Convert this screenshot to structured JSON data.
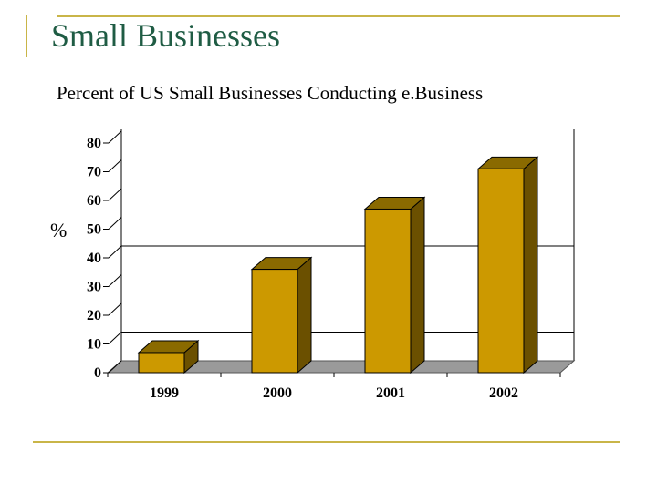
{
  "slide": {
    "title": "Small Businesses"
  },
  "colors": {
    "accent_line": "#c9b548",
    "title_text": "#1f5c44",
    "bar_front": "#cc9900",
    "bar_side": "#6b5000",
    "bar_top": "#8a6a00",
    "floor": "#9a9a9a"
  },
  "chart_data": {
    "type": "bar",
    "title": "Percent of US Small Businesses Conducting e.Business",
    "xlabel": "",
    "ylabel": "%",
    "categories": [
      "1999",
      "2000",
      "2001",
      "2002"
    ],
    "values": [
      7,
      36,
      57,
      71
    ],
    "ylim": [
      0,
      80
    ],
    "yticks": [
      0,
      10,
      20,
      30,
      40,
      50,
      60,
      70,
      80
    ],
    "grid": true,
    "gridlines_at": [
      10,
      40
    ],
    "style": "3d-column",
    "legend": "none"
  }
}
